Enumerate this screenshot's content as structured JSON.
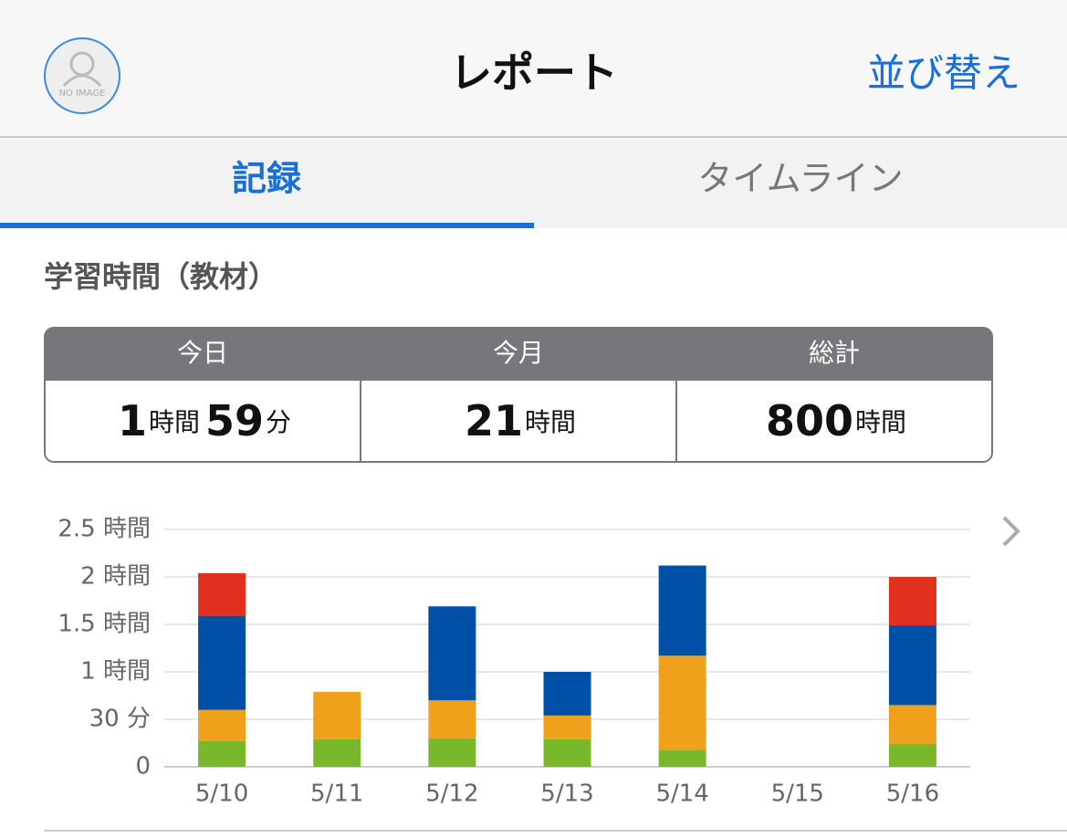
{
  "header": {
    "avatar_text": "NO IMAGE",
    "title": "レポート",
    "action": "並び替え"
  },
  "tabs": [
    "記録",
    "タイムライン"
  ],
  "section_title": "学習時間（教材）",
  "summary": {
    "cells": [
      {
        "label": "今日",
        "value": [
          "1",
          "時間",
          "59",
          "分"
        ]
      },
      {
        "label": "今月",
        "value": [
          "21",
          "時間"
        ]
      },
      {
        "label": "総計",
        "value": [
          "800",
          "時間"
        ]
      }
    ]
  },
  "chart_data": {
    "type": "stacked_bar",
    "categories": [
      "5/10",
      "5/11",
      "5/12",
      "5/13",
      "5/14",
      "5/15",
      "5/16"
    ],
    "series": [
      {
        "color": "#78b82a",
        "values": [
          0.27,
          0.29,
          0.3,
          0.29,
          0.18,
          0,
          0.24
        ]
      },
      {
        "color": "#f0a11b",
        "values": [
          0.33,
          0.5,
          0.4,
          0.25,
          0.99,
          0,
          0.41
        ]
      },
      {
        "color": "#0050a8",
        "values": [
          0.99,
          0,
          0.99,
          0.46,
          0.95,
          0,
          0.84
        ]
      },
      {
        "color": "#e2301e",
        "values": [
          0.45,
          0,
          0,
          0,
          0,
          0,
          0.51
        ]
      }
    ],
    "ylim": [
      0,
      2.5
    ],
    "yticks": [
      0,
      {
        "value": 0.5,
        "label": "30 分"
      },
      {
        "value": 1,
        "label": "1 時間"
      },
      {
        "value": 1.5,
        "label": "1.5 時間"
      },
      {
        "value": 2,
        "label": "2 時間"
      },
      {
        "value": 2.5,
        "label": "2.5 時間"
      }
    ],
    "grid": true
  }
}
